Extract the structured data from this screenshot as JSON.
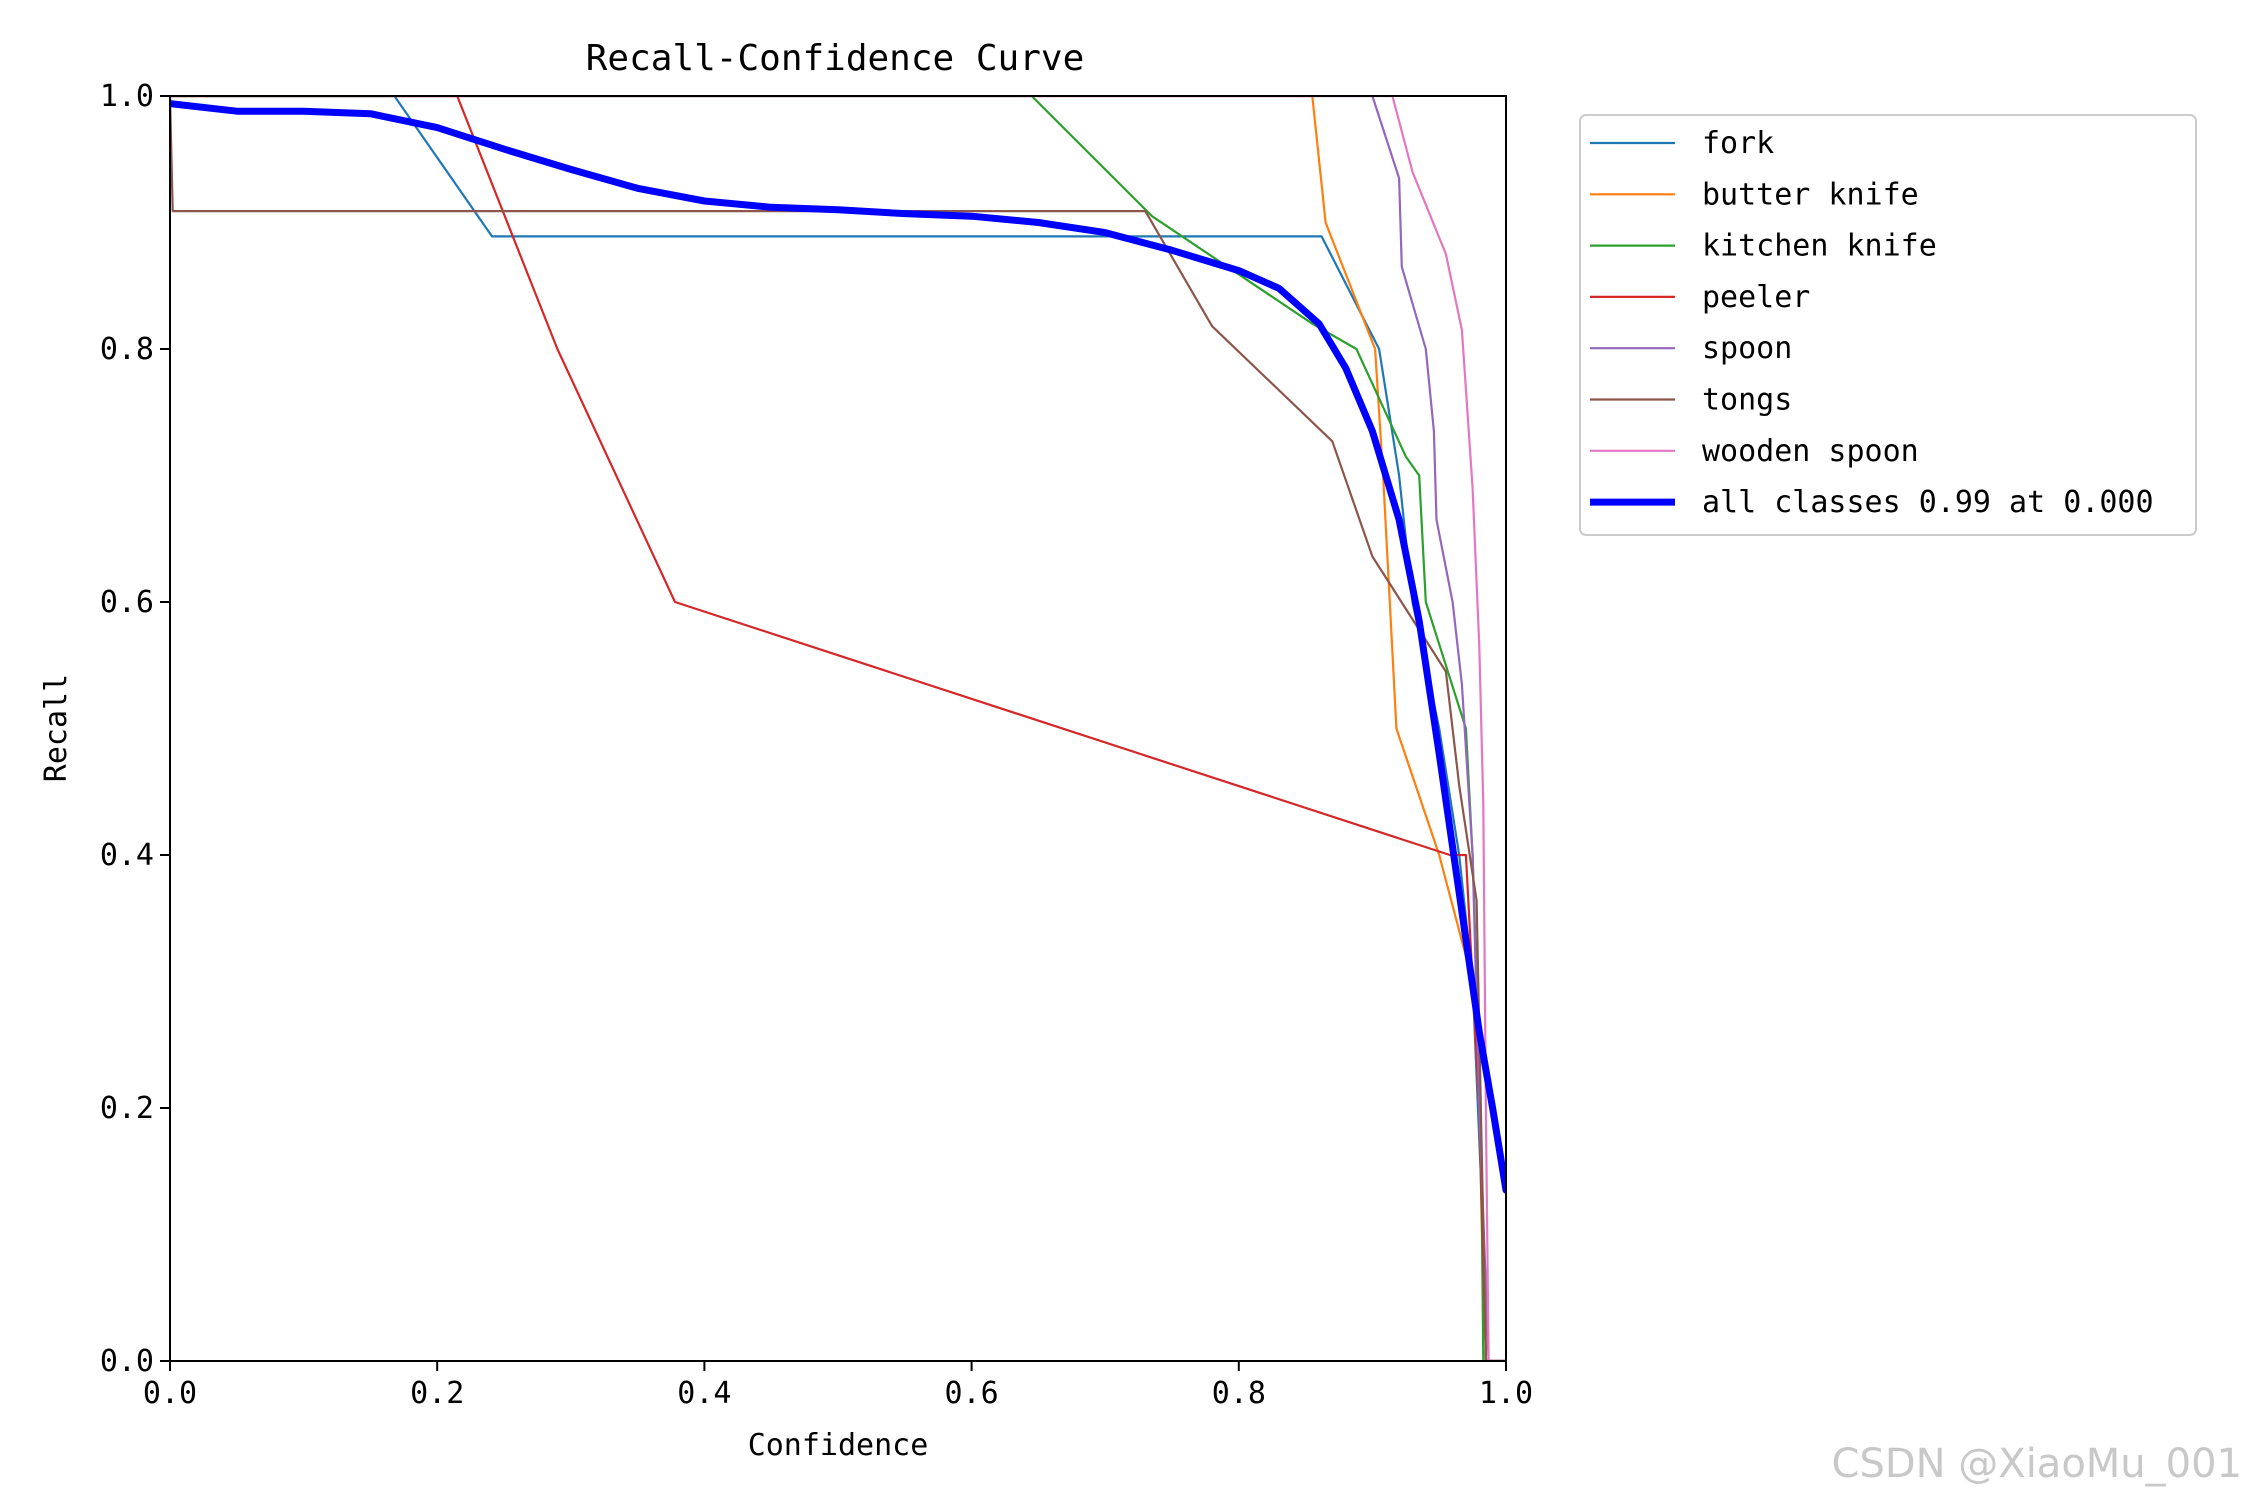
{
  "watermark": "CSDN @XiaoMu_001",
  "chart_data": {
    "type": "line",
    "title": "Recall-Confidence Curve",
    "xlabel": "Confidence",
    "ylabel": "Recall",
    "xlim": [
      0,
      1
    ],
    "ylim": [
      0,
      1
    ],
    "x_ticks": [
      "0.0",
      "0.2",
      "0.4",
      "0.6",
      "0.8",
      "1.0"
    ],
    "y_ticks": [
      "0.0",
      "0.2",
      "0.4",
      "0.6",
      "0.8",
      "1.0"
    ],
    "grid": false,
    "legend_position": "outside-right-top",
    "series": [
      {
        "name": "fork",
        "color": "#1f77b4",
        "bold": false,
        "points": [
          [
            0.0,
            1.0
          ],
          [
            0.168,
            1.0
          ],
          [
            0.241,
            0.889
          ],
          [
            0.862,
            0.889
          ],
          [
            0.905,
            0.8
          ],
          [
            0.92,
            0.7
          ],
          [
            0.93,
            0.6
          ],
          [
            0.95,
            0.5
          ],
          [
            0.965,
            0.4
          ],
          [
            0.975,
            0.3
          ],
          [
            0.983,
            0.1
          ],
          [
            0.985,
            0.0
          ],
          [
            1.0,
            0.0
          ]
        ]
      },
      {
        "name": "butter knife",
        "color": "#ff7f0e",
        "bold": false,
        "points": [
          [
            0.0,
            1.0
          ],
          [
            0.855,
            1.0
          ],
          [
            0.865,
            0.9
          ],
          [
            0.902,
            0.8
          ],
          [
            0.908,
            0.7
          ],
          [
            0.913,
            0.6
          ],
          [
            0.918,
            0.5
          ],
          [
            0.95,
            0.4
          ],
          [
            0.975,
            0.3
          ],
          [
            0.98,
            0.2
          ],
          [
            0.985,
            0.0
          ],
          [
            1.0,
            0.0
          ]
        ]
      },
      {
        "name": "kitchen knife",
        "color": "#2ca02c",
        "bold": false,
        "points": [
          [
            0.0,
            1.0
          ],
          [
            0.645,
            1.0
          ],
          [
            0.735,
            0.905
          ],
          [
            0.855,
            0.82
          ],
          [
            0.888,
            0.8
          ],
          [
            0.925,
            0.715
          ],
          [
            0.935,
            0.7
          ],
          [
            0.94,
            0.6
          ],
          [
            0.97,
            0.5
          ],
          [
            0.975,
            0.4
          ],
          [
            0.978,
            0.3
          ],
          [
            0.982,
            0.1
          ],
          [
            0.983,
            0.0
          ],
          [
            1.0,
            0.0
          ]
        ]
      },
      {
        "name": "peeler",
        "color": "#d62728",
        "bold": false,
        "points": [
          [
            0.0,
            1.0
          ],
          [
            0.215,
            1.0
          ],
          [
            0.29,
            0.8
          ],
          [
            0.378,
            0.6
          ],
          [
            0.958,
            0.4
          ],
          [
            0.97,
            0.4
          ],
          [
            0.98,
            0.2
          ],
          [
            0.985,
            0.0
          ],
          [
            1.0,
            0.0
          ]
        ]
      },
      {
        "name": "spoon",
        "color": "#9467bd",
        "bold": false,
        "points": [
          [
            0.0,
            1.0
          ],
          [
            0.9,
            1.0
          ],
          [
            0.92,
            0.935
          ],
          [
            0.922,
            0.865
          ],
          [
            0.94,
            0.8
          ],
          [
            0.946,
            0.735
          ],
          [
            0.948,
            0.665
          ],
          [
            0.96,
            0.6
          ],
          [
            0.967,
            0.535
          ],
          [
            0.975,
            0.4
          ],
          [
            0.98,
            0.2
          ],
          [
            0.987,
            0.0
          ],
          [
            1.0,
            0.0
          ]
        ]
      },
      {
        "name": "tongs",
        "color": "#8c564b",
        "bold": false,
        "points": [
          [
            0.0,
            1.0
          ],
          [
            0.002,
            0.909
          ],
          [
            0.73,
            0.909
          ],
          [
            0.78,
            0.818
          ],
          [
            0.87,
            0.727
          ],
          [
            0.9,
            0.636
          ],
          [
            0.955,
            0.545
          ],
          [
            0.965,
            0.455
          ],
          [
            0.978,
            0.364
          ],
          [
            0.985,
            0.0
          ],
          [
            1.0,
            0.0
          ]
        ]
      },
      {
        "name": "wooden spoon",
        "color": "#e377c2",
        "bold": false,
        "points": [
          [
            0.0,
            1.0
          ],
          [
            0.915,
            1.0
          ],
          [
            0.93,
            0.94
          ],
          [
            0.955,
            0.875
          ],
          [
            0.967,
            0.815
          ],
          [
            0.975,
            0.69
          ],
          [
            0.98,
            0.565
          ],
          [
            0.983,
            0.44
          ],
          [
            0.985,
            0.19
          ],
          [
            0.987,
            0.0
          ],
          [
            1.0,
            0.0
          ]
        ]
      },
      {
        "name": "all classes 0.99 at 0.000",
        "color": "#0000ff",
        "bold": true,
        "points": [
          [
            0.0,
            0.994
          ],
          [
            0.05,
            0.988
          ],
          [
            0.1,
            0.988
          ],
          [
            0.15,
            0.986
          ],
          [
            0.2,
            0.975
          ],
          [
            0.25,
            0.958
          ],
          [
            0.3,
            0.942
          ],
          [
            0.35,
            0.927
          ],
          [
            0.4,
            0.917
          ],
          [
            0.45,
            0.912
          ],
          [
            0.5,
            0.91
          ],
          [
            0.55,
            0.907
          ],
          [
            0.6,
            0.905
          ],
          [
            0.65,
            0.9
          ],
          [
            0.7,
            0.892
          ],
          [
            0.75,
            0.878
          ],
          [
            0.8,
            0.862
          ],
          [
            0.83,
            0.848
          ],
          [
            0.86,
            0.82
          ],
          [
            0.88,
            0.785
          ],
          [
            0.9,
            0.735
          ],
          [
            0.92,
            0.665
          ],
          [
            0.935,
            0.585
          ],
          [
            0.95,
            0.48
          ],
          [
            0.965,
            0.37
          ],
          [
            0.98,
            0.26
          ],
          [
            0.99,
            0.2
          ],
          [
            1.0,
            0.135
          ]
        ]
      }
    ]
  }
}
